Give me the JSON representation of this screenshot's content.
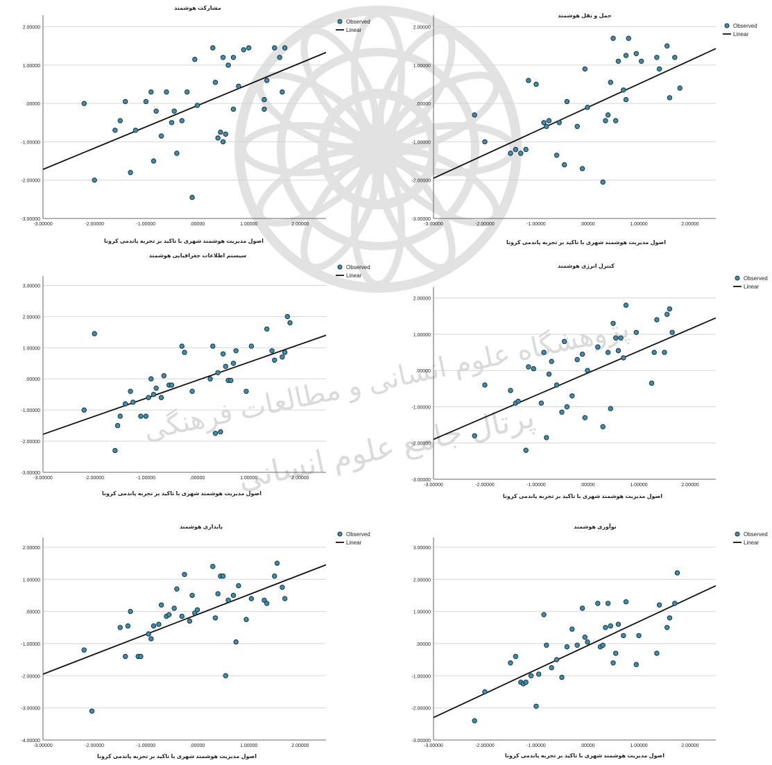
{
  "figure": {
    "observed_label": "Observed",
    "linear_label": "Linear",
    "colors": {
      "point_fill": "#3c8fb0",
      "point_stroke": "#1b2f3a",
      "line": "#111111",
      "grid": "#d6d6d6",
      "axis": "#666666",
      "text": "#222222"
    },
    "watermark_text_1": "پژوهشگاه علوم انسانی و مطالعات فرهنگی",
    "watermark_text_2": "پرتال جامع علوم انسانی"
  },
  "chart_data": [
    {
      "type": "scatter",
      "title": "مشارکت هوشمند",
      "xlabel": "اصول مدیریت هوشمند شهری با تاکید بر تجربه پاندمی کرونا",
      "ylabel": "",
      "xlim": [
        -3,
        2.5
      ],
      "ylim": [
        -3,
        2.3
      ],
      "x_ticks": [
        -3,
        -2,
        -1,
        0,
        1,
        2
      ],
      "x_tick_labels": [
        "-3.00000",
        "-2.00000",
        "-1.00000",
        ".00000",
        "1.00000",
        "2.00000"
      ],
      "y_ticks": [
        -3,
        -2,
        -1,
        0,
        1,
        2
      ],
      "y_tick_labels": [
        "-3.00000",
        "-2.00000",
        "-1.00000",
        ".00000",
        "1.00000",
        "2.00000"
      ],
      "grid": true,
      "legend": "top-right",
      "fit": {
        "x": [
          -3,
          2.5
        ],
        "y": [
          -1.72,
          1.33
        ]
      },
      "series": [
        {
          "name": "Observed",
          "x": [
            -2.2,
            -2.0,
            -1.6,
            -1.5,
            -1.4,
            -1.3,
            -1.2,
            -1.0,
            -0.9,
            -0.85,
            -0.8,
            -0.7,
            -0.6,
            -0.5,
            -0.45,
            -0.4,
            -0.3,
            -0.2,
            -0.1,
            -0.05,
            0.0,
            0.3,
            0.35,
            0.4,
            0.45,
            0.5,
            0.5,
            0.55,
            0.6,
            0.7,
            0.7,
            0.8,
            0.9,
            1.0,
            1.3,
            1.3,
            1.35,
            1.5,
            1.6,
            1.65,
            1.7
          ],
          "y": [
            0.0,
            -2.0,
            -0.7,
            -0.45,
            0.05,
            -1.8,
            -0.7,
            0.05,
            0.3,
            -1.5,
            -0.2,
            -0.85,
            0.3,
            -0.5,
            -0.2,
            -1.3,
            -0.45,
            0.3,
            -2.45,
            1.15,
            -0.05,
            1.45,
            0.55,
            -0.9,
            -0.75,
            1.2,
            -1.0,
            -0.8,
            1.0,
            1.2,
            -0.15,
            0.45,
            1.4,
            1.45,
            0.1,
            -0.15,
            0.6,
            1.45,
            1.2,
            0.3,
            1.45
          ]
        }
      ]
    },
    {
      "type": "scatter",
      "title": "حمل و نقل هوشمند",
      "xlabel": "اصول مدیریت هوشمند شهری با تاکید بر تجربه پاندمی کرونا",
      "ylabel": "",
      "xlim": [
        -3,
        2.5
      ],
      "ylim": [
        -3,
        2.3
      ],
      "x_ticks": [
        -3,
        -2,
        -1,
        0,
        1,
        2
      ],
      "x_tick_labels": [
        "-3.00000",
        "-2.00000",
        "-1.00000",
        ".00000",
        "1.00000",
        "2.00000"
      ],
      "y_ticks": [
        -3,
        -2,
        -1,
        0,
        1,
        2
      ],
      "y_tick_labels": [
        "-3.00000",
        "-2.00000",
        "-1.00000",
        ".00000",
        "1.00000",
        "2.00000"
      ],
      "grid": true,
      "legend": "top-right",
      "fit": {
        "x": [
          -3,
          2.5
        ],
        "y": [
          -1.95,
          1.43
        ]
      },
      "series": [
        {
          "name": "Observed",
          "x": [
            -2.2,
            -2.0,
            -1.5,
            -1.4,
            -1.3,
            -1.2,
            -1.15,
            -1.0,
            -0.85,
            -0.8,
            -0.75,
            -0.6,
            -0.55,
            -0.45,
            -0.4,
            -0.2,
            -0.1,
            -0.05,
            0.0,
            0.3,
            0.35,
            0.4,
            0.45,
            0.5,
            0.55,
            0.6,
            0.7,
            0.75,
            0.75,
            0.8,
            0.95,
            1.05,
            1.35,
            1.4,
            1.55,
            1.6,
            1.7,
            1.8
          ],
          "y": [
            -0.3,
            -1.0,
            -1.3,
            -1.2,
            -1.3,
            -1.2,
            0.6,
            0.5,
            -0.5,
            -0.6,
            -0.45,
            -1.35,
            -0.5,
            -1.6,
            0.05,
            -0.6,
            -1.7,
            0.9,
            -0.1,
            -2.05,
            -0.45,
            -0.3,
            0.55,
            1.7,
            -0.45,
            1.1,
            0.35,
            0.1,
            1.25,
            1.7,
            1.3,
            1.1,
            1.2,
            0.9,
            1.5,
            0.15,
            1.2,
            0.4
          ]
        }
      ]
    },
    {
      "type": "scatter",
      "title": "سیستم اطلاعات جغرافیایی هوشمند",
      "xlabel": "اصول مدیریت هوشمند شهری با تاکید بر تجربه پاندمی کرونا",
      "ylabel": "",
      "xlim": [
        -3,
        2.5
      ],
      "ylim": [
        -3,
        3.3
      ],
      "x_ticks": [
        -3,
        -2,
        -1,
        0,
        1,
        2
      ],
      "x_tick_labels": [
        "-3.00000",
        "-2.00000",
        "-1.00000",
        ".00000",
        "1.00000",
        "2.00000"
      ],
      "y_ticks": [
        -3,
        -2,
        -1,
        0,
        1,
        2,
        3
      ],
      "y_tick_labels": [
        "-3.00000",
        "-2.00000",
        "-1.00000",
        ".00000",
        "1.00000",
        "2.00000",
        "3.00000"
      ],
      "grid": true,
      "legend": "top-right",
      "fit": {
        "x": [
          -3,
          2.5
        ],
        "y": [
          -1.78,
          1.4
        ]
      },
      "series": [
        {
          "name": "Observed",
          "x": [
            -2.2,
            -2.0,
            -1.6,
            -1.55,
            -1.5,
            -1.4,
            -1.3,
            -1.25,
            -1.1,
            -1.0,
            -0.95,
            -0.9,
            -0.85,
            -0.8,
            -0.7,
            -0.65,
            -0.55,
            -0.5,
            -0.3,
            -0.25,
            -0.1,
            0.25,
            0.3,
            0.35,
            0.4,
            0.45,
            0.5,
            0.55,
            0.6,
            0.65,
            0.7,
            0.75,
            0.95,
            1.05,
            1.35,
            1.45,
            1.5,
            1.65,
            1.7,
            1.75,
            1.8
          ],
          "y": [
            -1.0,
            1.45,
            -2.3,
            -1.5,
            -1.2,
            -0.8,
            -0.4,
            -0.75,
            -1.2,
            -1.2,
            -0.6,
            0.0,
            -0.5,
            -0.3,
            -0.6,
            0.1,
            -0.2,
            -0.2,
            1.05,
            0.85,
            -0.4,
            0.0,
            1.05,
            -1.75,
            0.2,
            -1.7,
            0.8,
            0.4,
            -0.05,
            -0.05,
            0.5,
            0.9,
            -0.4,
            1.05,
            1.6,
            0.9,
            0.6,
            0.7,
            0.85,
            2.0,
            1.8
          ]
        }
      ]
    },
    {
      "type": "scatter",
      "title": "کنترل انرژی هوشمند",
      "xlabel": "اصول مدیریت هوشمند شهری با تاکید بر تجربه پاندمی کرونا",
      "ylabel": "",
      "xlim": [
        -3,
        2.5
      ],
      "ylim": [
        -3,
        2.3
      ],
      "x_ticks": [
        -3,
        -2,
        -1,
        0,
        1,
        2
      ],
      "x_tick_labels": [
        "-3.00000",
        "-2.00000",
        "-1.00000",
        ".00000",
        "1.00000",
        "2.00000"
      ],
      "y_ticks": [
        -3,
        -2,
        -1,
        0,
        1,
        2
      ],
      "y_tick_labels": [
        "-3.00000",
        "-2.00000",
        "-1.00000",
        ".00000",
        "1.00000",
        "2.00000"
      ],
      "grid": true,
      "legend": "top-right",
      "fit": {
        "x": [
          -3,
          2.5
        ],
        "y": [
          -1.9,
          1.45
        ]
      },
      "series": [
        {
          "name": "Observed",
          "x": [
            -2.2,
            -2.0,
            -1.5,
            -1.4,
            -1.35,
            -1.2,
            -1.15,
            -1.05,
            -0.9,
            -0.85,
            -0.8,
            -0.75,
            -0.7,
            -0.6,
            -0.5,
            -0.45,
            -0.4,
            -0.3,
            -0.2,
            -0.1,
            -0.05,
            0.0,
            0.2,
            0.3,
            0.4,
            0.45,
            0.5,
            0.55,
            0.6,
            0.65,
            0.7,
            0.75,
            0.95,
            1.25,
            1.3,
            1.35,
            1.5,
            1.55,
            1.6,
            1.65
          ],
          "y": [
            -1.8,
            -0.4,
            -0.55,
            -0.9,
            -0.85,
            -2.2,
            0.1,
            0.05,
            -0.9,
            0.5,
            -1.85,
            -0.1,
            0.25,
            -0.4,
            -1.15,
            0.8,
            -1.0,
            -0.7,
            0.3,
            0.45,
            -1.3,
            0.0,
            0.65,
            -1.55,
            0.5,
            -1.05,
            1.3,
            0.9,
            0.55,
            0.9,
            0.35,
            1.8,
            1.05,
            -0.35,
            0.5,
            1.4,
            0.5,
            1.55,
            1.7,
            1.05
          ]
        }
      ]
    },
    {
      "type": "scatter",
      "title": "پایداری هوشمند",
      "xlabel": "اصول مدیریت هوشمند شهری با تاکید بر تجربه پاندمی کرونا",
      "ylabel": "",
      "xlim": [
        -3,
        2.5
      ],
      "ylim": [
        -4,
        2.3
      ],
      "x_ticks": [
        -3,
        -2,
        -1,
        0,
        1,
        2
      ],
      "x_tick_labels": [
        "-3.00000",
        "-2.00000",
        "-1.00000",
        ".00000",
        "1.00000",
        "2.00000"
      ],
      "y_ticks": [
        -4,
        -3,
        -2,
        -1,
        0,
        1,
        2
      ],
      "y_tick_labels": [
        "-4.00000",
        "-3.00000",
        "-2.00000",
        "-1.00000",
        ".00000",
        "1.00000",
        "2.00000"
      ],
      "grid": true,
      "legend": "top-right",
      "fit": {
        "x": [
          -3,
          2.5
        ],
        "y": [
          -1.95,
          1.45
        ]
      },
      "series": [
        {
          "name": "Observed",
          "x": [
            -2.2,
            -2.05,
            -1.5,
            -1.4,
            -1.35,
            -1.3,
            -1.15,
            -1.1,
            -0.95,
            -0.9,
            -0.85,
            -0.75,
            -0.7,
            -0.6,
            -0.55,
            -0.45,
            -0.4,
            -0.3,
            -0.25,
            -0.15,
            -0.1,
            -0.05,
            0.0,
            0.3,
            0.35,
            0.4,
            0.45,
            0.5,
            0.55,
            0.6,
            0.7,
            0.75,
            0.8,
            0.95,
            1.05,
            1.3,
            1.35,
            1.5,
            1.55,
            1.65,
            1.7
          ],
          "y": [
            -1.2,
            -3.1,
            -0.5,
            -1.4,
            -0.45,
            0.0,
            -1.4,
            -1.4,
            -0.7,
            -0.85,
            -0.45,
            -0.4,
            0.2,
            -0.15,
            -0.1,
            0.1,
            0.7,
            -0.15,
            1.15,
            -0.3,
            0.5,
            -0.05,
            0.05,
            1.4,
            -0.2,
            0.55,
            1.1,
            1.1,
            -2.0,
            0.35,
            0.5,
            -0.95,
            0.8,
            -0.25,
            0.4,
            0.35,
            0.25,
            1.1,
            1.5,
            0.75,
            0.4
          ]
        }
      ]
    },
    {
      "type": "scatter",
      "title": "نوآوری هوشمند",
      "xlabel": "اصول مدیریت هوشمند شهری با تاکید بر تجربه پاندمی کرونا",
      "ylabel": "",
      "xlim": [
        -3,
        2.5
      ],
      "ylim": [
        -3,
        3.3
      ],
      "x_ticks": [
        -3,
        -2,
        -1,
        0,
        1,
        2
      ],
      "x_tick_labels": [
        "-3.00000",
        "-2.00000",
        "-1.00000",
        ".00000",
        "1.00000",
        "2.00000"
      ],
      "y_ticks": [
        -3,
        -2,
        -1,
        0,
        1,
        2,
        3
      ],
      "y_tick_labels": [
        "-3.00000",
        "-2.00000",
        "-1.00000",
        ".00000",
        "1.00000",
        "2.00000",
        "3.00000"
      ],
      "grid": true,
      "legend": "top-right",
      "fit": {
        "x": [
          -3,
          2.5
        ],
        "y": [
          -2.3,
          1.8
        ]
      },
      "series": [
        {
          "name": "Observed",
          "x": [
            -2.2,
            -2.0,
            -1.5,
            -1.4,
            -1.3,
            -1.25,
            -1.2,
            -1.1,
            -1.0,
            -0.95,
            -0.85,
            -0.8,
            -0.7,
            -0.6,
            -0.5,
            -0.4,
            -0.3,
            -0.2,
            -0.1,
            -0.05,
            0.0,
            0.2,
            0.25,
            0.3,
            0.35,
            0.4,
            0.45,
            0.5,
            0.55,
            0.6,
            0.7,
            0.75,
            0.95,
            1.0,
            1.35,
            1.4,
            1.55,
            1.6,
            1.7,
            1.75
          ],
          "y": [
            -2.4,
            -1.5,
            -0.6,
            -0.4,
            -1.2,
            -1.25,
            -1.2,
            -1.0,
            -1.95,
            -0.95,
            0.9,
            -0.05,
            -0.75,
            -0.5,
            -1.05,
            -0.1,
            0.45,
            -0.05,
            1.1,
            0.2,
            0.05,
            1.25,
            -0.1,
            -0.05,
            0.5,
            1.25,
            0.55,
            -0.6,
            -0.3,
            0.6,
            0.25,
            1.3,
            -0.65,
            0.25,
            -0.3,
            1.2,
            0.5,
            0.8,
            1.25,
            2.2
          ]
        }
      ]
    }
  ]
}
